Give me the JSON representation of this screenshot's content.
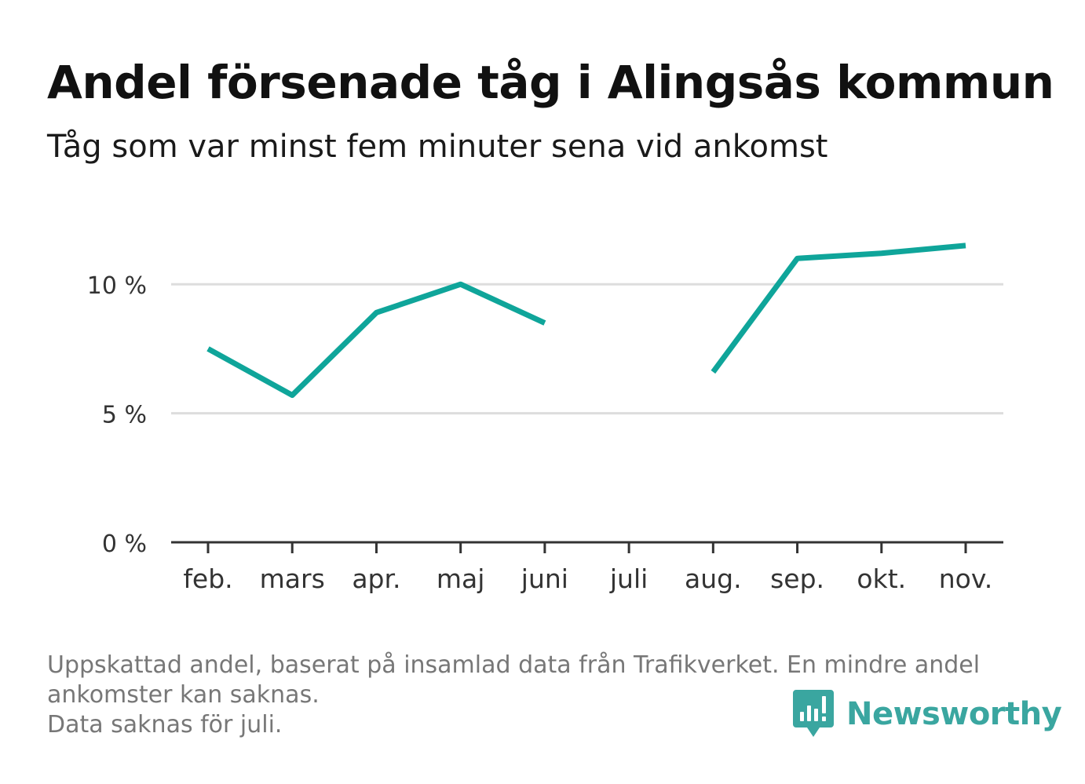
{
  "title": "Andel försenade tåg i Alingsås kommun",
  "subtitle": "Tåg som var minst fem minuter sena vid ankomst",
  "footnote": {
    "line1": "Uppskattad andel, baserat på insamlad data från Trafikverket. En mindre andel",
    "line2": "ankomster kan saknas.",
    "line3": "Data saknas för juli."
  },
  "brand": {
    "name": "Newsworthy",
    "icon": "newsworthy-logo-icon"
  },
  "colors": {
    "line": "#0fa59a",
    "grid": "#dddddd",
    "axis": "#333333",
    "brand": "#3aa6a0"
  },
  "chart_data": {
    "type": "line",
    "categories": [
      "feb.",
      "mars",
      "apr.",
      "maj",
      "juni",
      "juli",
      "aug.",
      "sep.",
      "okt.",
      "nov."
    ],
    "series": [
      {
        "values": [
          7.5,
          5.7,
          8.9,
          10.0,
          8.5,
          null,
          6.6,
          11.0,
          11.2,
          11.5
        ]
      }
    ],
    "y_ticks": [
      0,
      5,
      10
    ],
    "y_tick_labels": [
      "0 %",
      "5 %",
      "10 %"
    ],
    "ylim": [
      0,
      12.5
    ],
    "grid": true,
    "xlabel": "",
    "ylabel": ""
  }
}
